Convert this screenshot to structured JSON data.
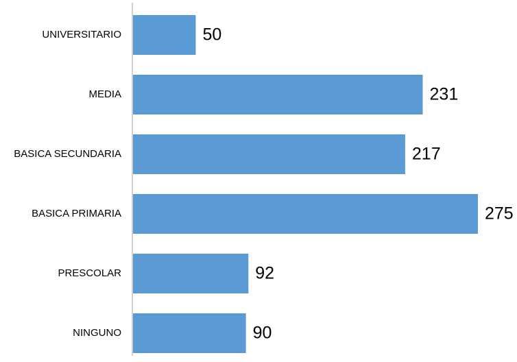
{
  "chart_data": {
    "type": "bar",
    "orientation": "horizontal",
    "title": "",
    "xlabel": "",
    "ylabel": "",
    "categories": [
      "UNIVERSITARIO",
      "MEDIA",
      "BASICA SECUNDARIA",
      "BASICA PRIMARIA",
      "PRESCOLAR",
      "NINGUNO"
    ],
    "values": [
      50,
      231,
      217,
      275,
      92,
      90
    ],
    "xlim": [
      0,
      275
    ],
    "grid": false,
    "legend": "none",
    "bar_color": "#5B9BD5",
    "axis_color": "#BFBFBF"
  }
}
